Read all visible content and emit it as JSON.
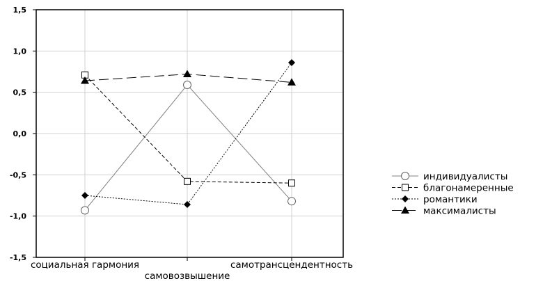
{
  "chart_data": {
    "type": "line",
    "categories": [
      "социальная гармония",
      "самовозвышение",
      "самотрансцендентность"
    ],
    "ylim": [
      -1.5,
      1.5
    ],
    "yticks": [
      "1,5",
      "1,0",
      "0,5",
      "0,0",
      "-0,5",
      "-1,0",
      "-1,5"
    ],
    "ytick_values": [
      1.5,
      1.0,
      0.5,
      0.0,
      -0.5,
      -1.0,
      -1.5
    ],
    "grid": true,
    "legend_position": "right",
    "series": [
      {
        "name": "индивидуалисты",
        "values": [
          -0.93,
          0.59,
          -0.82
        ],
        "marker": "circle-open",
        "line": "solid",
        "color": "#808080"
      },
      {
        "name": "благонамеренные",
        "values": [
          0.71,
          -0.58,
          -0.6
        ],
        "marker": "square-open",
        "line": "dashed",
        "color": "#000000"
      },
      {
        "name": "романтики",
        "values": [
          -0.75,
          -0.86,
          0.86
        ],
        "marker": "diamond-filled",
        "line": "dotted",
        "color": "#000000"
      },
      {
        "name": "максималисты",
        "values": [
          0.64,
          0.72,
          0.62
        ],
        "marker": "triangle-filled",
        "line": "longdash",
        "color": "#000000"
      }
    ]
  }
}
